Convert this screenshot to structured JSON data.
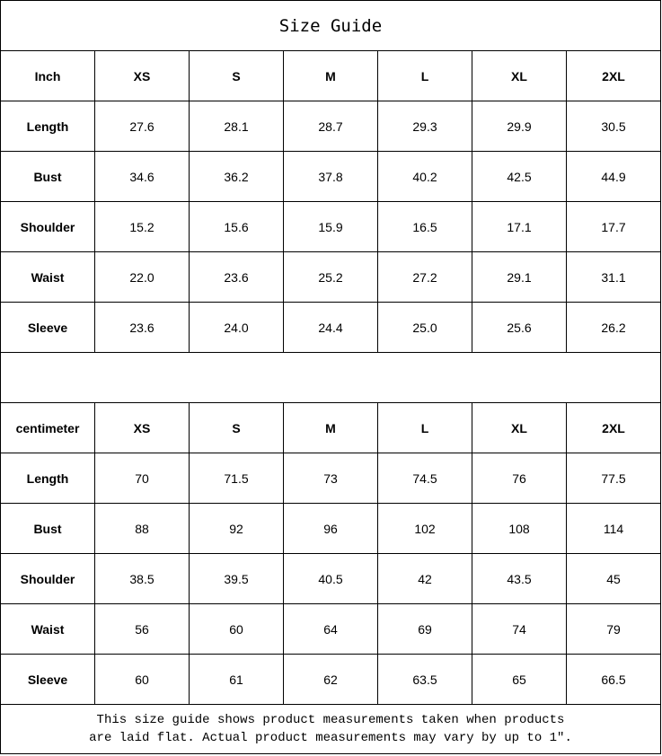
{
  "title": "Size Guide",
  "sizes": [
    "XS",
    "S",
    "M",
    "L",
    "XL",
    "2XL"
  ],
  "inch": {
    "unit_label": "Inch",
    "rows": [
      {
        "label": "Length",
        "values": [
          "27.6",
          "28.1",
          "28.7",
          "29.3",
          "29.9",
          "30.5"
        ]
      },
      {
        "label": "Bust",
        "values": [
          "34.6",
          "36.2",
          "37.8",
          "40.2",
          "42.5",
          "44.9"
        ]
      },
      {
        "label": "Shoulder",
        "values": [
          "15.2",
          "15.6",
          "15.9",
          "16.5",
          "17.1",
          "17.7"
        ]
      },
      {
        "label": "Waist",
        "values": [
          "22.0",
          "23.6",
          "25.2",
          "27.2",
          "29.1",
          "31.1"
        ]
      },
      {
        "label": "Sleeve",
        "values": [
          "23.6",
          "24.0",
          "24.4",
          "25.0",
          "25.6",
          "26.2"
        ]
      }
    ]
  },
  "cm": {
    "unit_label": "centimeter",
    "rows": [
      {
        "label": "Length",
        "values": [
          "70",
          "71.5",
          "73",
          "74.5",
          "76",
          "77.5"
        ]
      },
      {
        "label": "Bust",
        "values": [
          "88",
          "92",
          "96",
          "102",
          "108",
          "114"
        ]
      },
      {
        "label": "Shoulder",
        "values": [
          "38.5",
          "39.5",
          "40.5",
          "42",
          "43.5",
          "45"
        ]
      },
      {
        "label": "Waist",
        "values": [
          "56",
          "60",
          "64",
          "69",
          "74",
          "79"
        ]
      },
      {
        "label": "Sleeve",
        "values": [
          "60",
          "61",
          "62",
          "63.5",
          "65",
          "66.5"
        ]
      }
    ]
  },
  "note": {
    "line1": "This size guide shows product measurements taken when products",
    "line2": "are laid flat. Actual product measurements may vary by up to 1″."
  }
}
